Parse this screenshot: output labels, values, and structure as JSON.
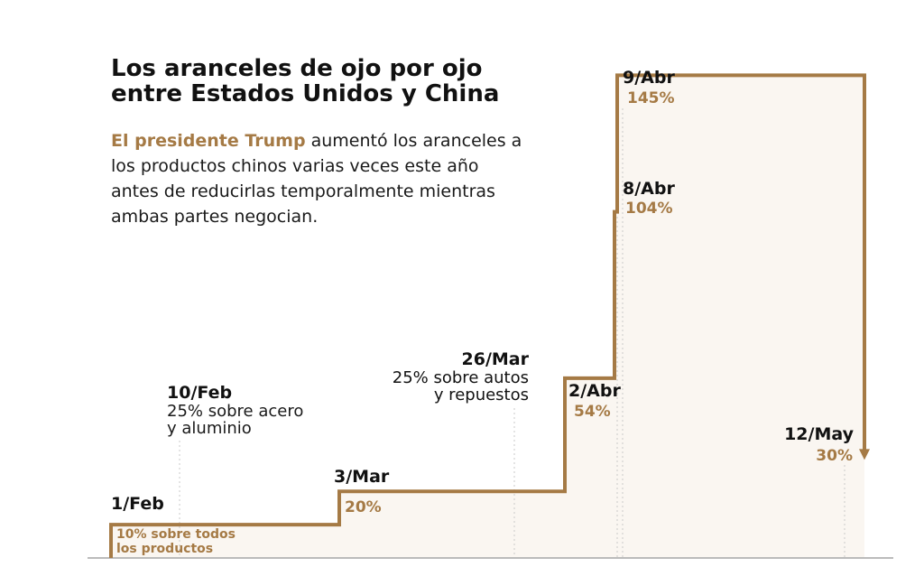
{
  "header": {
    "title_line1": "Los aranceles de ojo por ojo",
    "title_line2": "entre Estados Unidos y China",
    "subtitle_highlight": "El presidente Trump",
    "subtitle_rest": " aumentó los aranceles a los productos chinos varias veces este año antes de reducirlas temporalmente mientras ambas partes negocian."
  },
  "colors": {
    "line": "#a57a45",
    "fill": "#faf6f1",
    "accent_text": "#a57a45",
    "baseline": "#bbbbbb"
  },
  "chart_data": {
    "type": "line",
    "step": true,
    "ylim": [
      0,
      150
    ],
    "points": [
      {
        "date": "1/Feb",
        "value": 10,
        "label": "10% sobre todos los productos",
        "label_line1": "10% sobre todos",
        "label_line2": "los productos"
      },
      {
        "date": "3/Mar",
        "value": 20,
        "label": "20%"
      },
      {
        "date": "2/Abr",
        "value": 54,
        "label": "54%"
      },
      {
        "date": "8/Abr",
        "value": 104,
        "label": "104%"
      },
      {
        "date": "9/Abr",
        "value": 145,
        "label": "145%"
      },
      {
        "date": "12/May",
        "value": 30,
        "label": "30%"
      }
    ],
    "annotations": [
      {
        "date": "10/Feb",
        "line1": "25% sobre acero",
        "line2": "y aluminio"
      },
      {
        "date": "26/Mar",
        "line1": "25% sobre autos",
        "line2": "y repuestos"
      }
    ]
  }
}
